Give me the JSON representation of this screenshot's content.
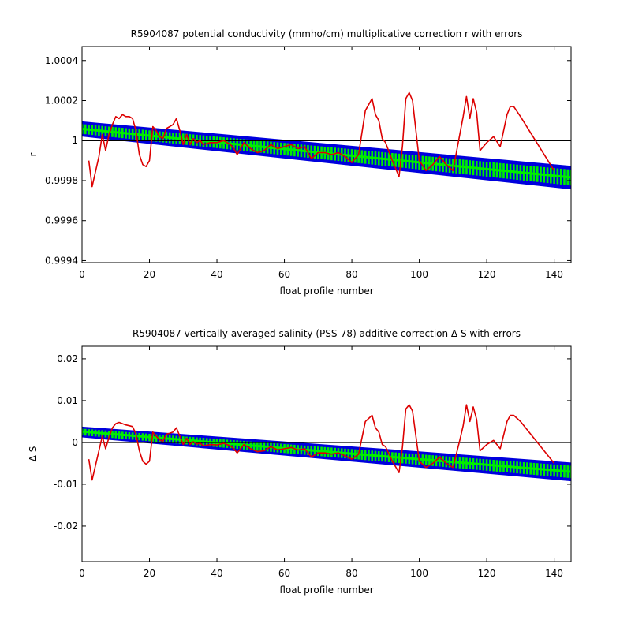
{
  "chart_data": [
    {
      "type": "line",
      "title": "R5904087 potential conductivity (mmho/cm) multiplicative correction r with errors",
      "xlabel": "float profile number",
      "ylabel": "r",
      "xlim": [
        0,
        145
      ],
      "ylim": [
        0.99939,
        1.00047
      ],
      "xticks": [
        0,
        20,
        40,
        60,
        80,
        100,
        120,
        140
      ],
      "yticks": [
        0.9994,
        0.9996,
        0.9998,
        1,
        1.0002,
        1.0004
      ],
      "ytick_labels": [
        "0.9994",
        "0.9996",
        "0.9998",
        "1",
        "1.0002",
        "1.0004"
      ],
      "grid": false,
      "reference_line": 1,
      "colors": {
        "fit": "#00ee00",
        "error": "#0000dd",
        "data": "#dd0000",
        "reference": "#000000"
      },
      "series": [
        {
          "role": "fit",
          "x": [
            0,
            145
          ],
          "y": [
            1.000058,
            0.999816
          ]
        },
        {
          "role": "error-upper",
          "x": [
            0,
            145
          ],
          "y": [
            1.000092,
            0.99987
          ]
        },
        {
          "role": "error-lower",
          "x": [
            0,
            145
          ],
          "y": [
            1.000024,
            0.99976
          ]
        },
        {
          "role": "data",
          "x": [
            2,
            3,
            5,
            6,
            7,
            8,
            9,
            10,
            11,
            12,
            13,
            14,
            15,
            16,
            17,
            18,
            19,
            20,
            21,
            22,
            23,
            24,
            25,
            26,
            27,
            28,
            29,
            30,
            31,
            32,
            33,
            34,
            35,
            36,
            38,
            40,
            42,
            44,
            45,
            46,
            48,
            50,
            52,
            54,
            56,
            58,
            60,
            62,
            64,
            66,
            68,
            70,
            72,
            74,
            76,
            78,
            80,
            82,
            84,
            86,
            87,
            88,
            89,
            90,
            92,
            94,
            95,
            96,
            97,
            98,
            100,
            102,
            104,
            106,
            108,
            110,
            112,
            113,
            114,
            115,
            116,
            117,
            118,
            120,
            122,
            124,
            126,
            127,
            128,
            130,
            140
          ],
          "y": [
            0.9999,
            0.99977,
            0.99992,
            1.00003,
            0.99995,
            1.00003,
            1.00008,
            1.00012,
            1.00011,
            1.00013,
            1.00012,
            1.00012,
            1.00011,
            1.00005,
            0.99993,
            0.99988,
            0.99987,
            0.9999,
            1.00007,
            1.00005,
            1.00002,
            1.00001,
            1.00006,
            1.00007,
            1.00008,
            1.00011,
            1.00005,
            0.99998,
            1.00003,
            0.99998,
            1.00001,
            0.99999,
            1.0,
            0.99998,
            0.99999,
            0.99999,
            1.0,
            0.99998,
            0.99996,
            0.99993,
            0.99999,
            0.99996,
            0.99994,
            0.99995,
            0.99998,
            0.99996,
            0.99997,
            0.99998,
            0.99996,
            0.99997,
            0.99991,
            0.99994,
            0.99994,
            0.99993,
            0.99994,
            0.99992,
            0.99989,
            0.99993,
            1.00015,
            1.00021,
            1.00013,
            1.0001,
            1.00001,
            0.99999,
            0.9999,
            0.99982,
            0.99997,
            1.00021,
            1.00024,
            1.0002,
            0.9999,
            0.99985,
            0.99988,
            0.99992,
            0.99988,
            0.99985,
            1.00003,
            1.00012,
            1.00022,
            1.00011,
            1.00021,
            1.00014,
            0.99995,
            0.99999,
            1.00002,
            0.99997,
            1.00013,
            1.00017,
            1.00017,
            1.00012,
            0.99985
          ]
        }
      ]
    },
    {
      "type": "line",
      "title": "R5904087 vertically-averaged salinity (PSS-78) additive correction Δ S with errors",
      "xlabel": "float profile number",
      "ylabel": "Δ S",
      "xlim": [
        0,
        145
      ],
      "ylim": [
        -0.0285,
        0.023
      ],
      "xticks": [
        0,
        20,
        40,
        60,
        80,
        100,
        120,
        140
      ],
      "yticks": [
        -0.02,
        -0.01,
        0,
        0.01,
        0.02
      ],
      "ytick_labels": [
        "-0.02",
        "-0.01",
        "0",
        "0.01",
        "0.02"
      ],
      "grid": false,
      "reference_line": 0,
      "colors": {
        "fit": "#00ee00",
        "error": "#0000dd",
        "data": "#dd0000",
        "reference": "#000000"
      },
      "series": [
        {
          "role": "fit",
          "x": [
            0,
            145
          ],
          "y": [
            0.0026,
            -0.007
          ]
        },
        {
          "role": "error-upper",
          "x": [
            0,
            145
          ],
          "y": [
            0.0036,
            -0.005
          ]
        },
        {
          "role": "error-lower",
          "x": [
            0,
            145
          ],
          "y": [
            0.0014,
            -0.0091
          ]
        },
        {
          "role": "data",
          "x": [
            2,
            3,
            5,
            6,
            7,
            8,
            9,
            10,
            11,
            12,
            13,
            14,
            15,
            16,
            17,
            18,
            19,
            20,
            21,
            22,
            23,
            24,
            25,
            26,
            27,
            28,
            29,
            30,
            31,
            32,
            33,
            34,
            35,
            36,
            38,
            40,
            42,
            44,
            45,
            46,
            48,
            50,
            52,
            54,
            56,
            58,
            60,
            62,
            64,
            66,
            68,
            70,
            72,
            74,
            76,
            78,
            80,
            82,
            84,
            86,
            87,
            88,
            89,
            90,
            92,
            94,
            95,
            96,
            97,
            98,
            100,
            102,
            104,
            106,
            108,
            110,
            112,
            113,
            114,
            115,
            116,
            117,
            118,
            120,
            122,
            124,
            126,
            127,
            128,
            130,
            140
          ],
          "y": [
            -0.004,
            -0.009,
            -0.002,
            0.0015,
            -0.0015,
            0.0012,
            0.0035,
            0.0045,
            0.0048,
            0.0045,
            0.0042,
            0.004,
            0.0038,
            0.002,
            -0.002,
            -0.0045,
            -0.0052,
            -0.0045,
            0.0025,
            0.0015,
            0.0006,
            0.0003,
            0.002,
            0.0022,
            0.0025,
            0.0035,
            0.0015,
            -0.0005,
            0.001,
            -0.0005,
            0.0002,
            -0.0004,
            -0.0002,
            -0.0008,
            -0.0005,
            -0.0006,
            -0.0002,
            -0.0008,
            -0.0015,
            -0.0025,
            -0.0005,
            -0.0015,
            -0.0022,
            -0.002,
            -0.001,
            -0.0018,
            -0.0015,
            -0.0012,
            -0.0018,
            -0.0015,
            -0.0035,
            -0.0025,
            -0.0025,
            -0.0028,
            -0.0025,
            -0.0032,
            -0.004,
            -0.0028,
            0.005,
            0.0065,
            0.0035,
            0.0025,
            -0.0005,
            -0.001,
            -0.0045,
            -0.0072,
            -0.0012,
            0.008,
            0.009,
            0.0075,
            -0.0045,
            -0.006,
            -0.005,
            -0.0035,
            -0.005,
            -0.006,
            0.0005,
            0.004,
            0.009,
            0.005,
            0.0085,
            0.0055,
            -0.002,
            -0.0005,
            0.0005,
            -0.0015,
            0.005,
            0.0065,
            0.0065,
            0.005,
            -0.005
          ]
        }
      ]
    }
  ]
}
